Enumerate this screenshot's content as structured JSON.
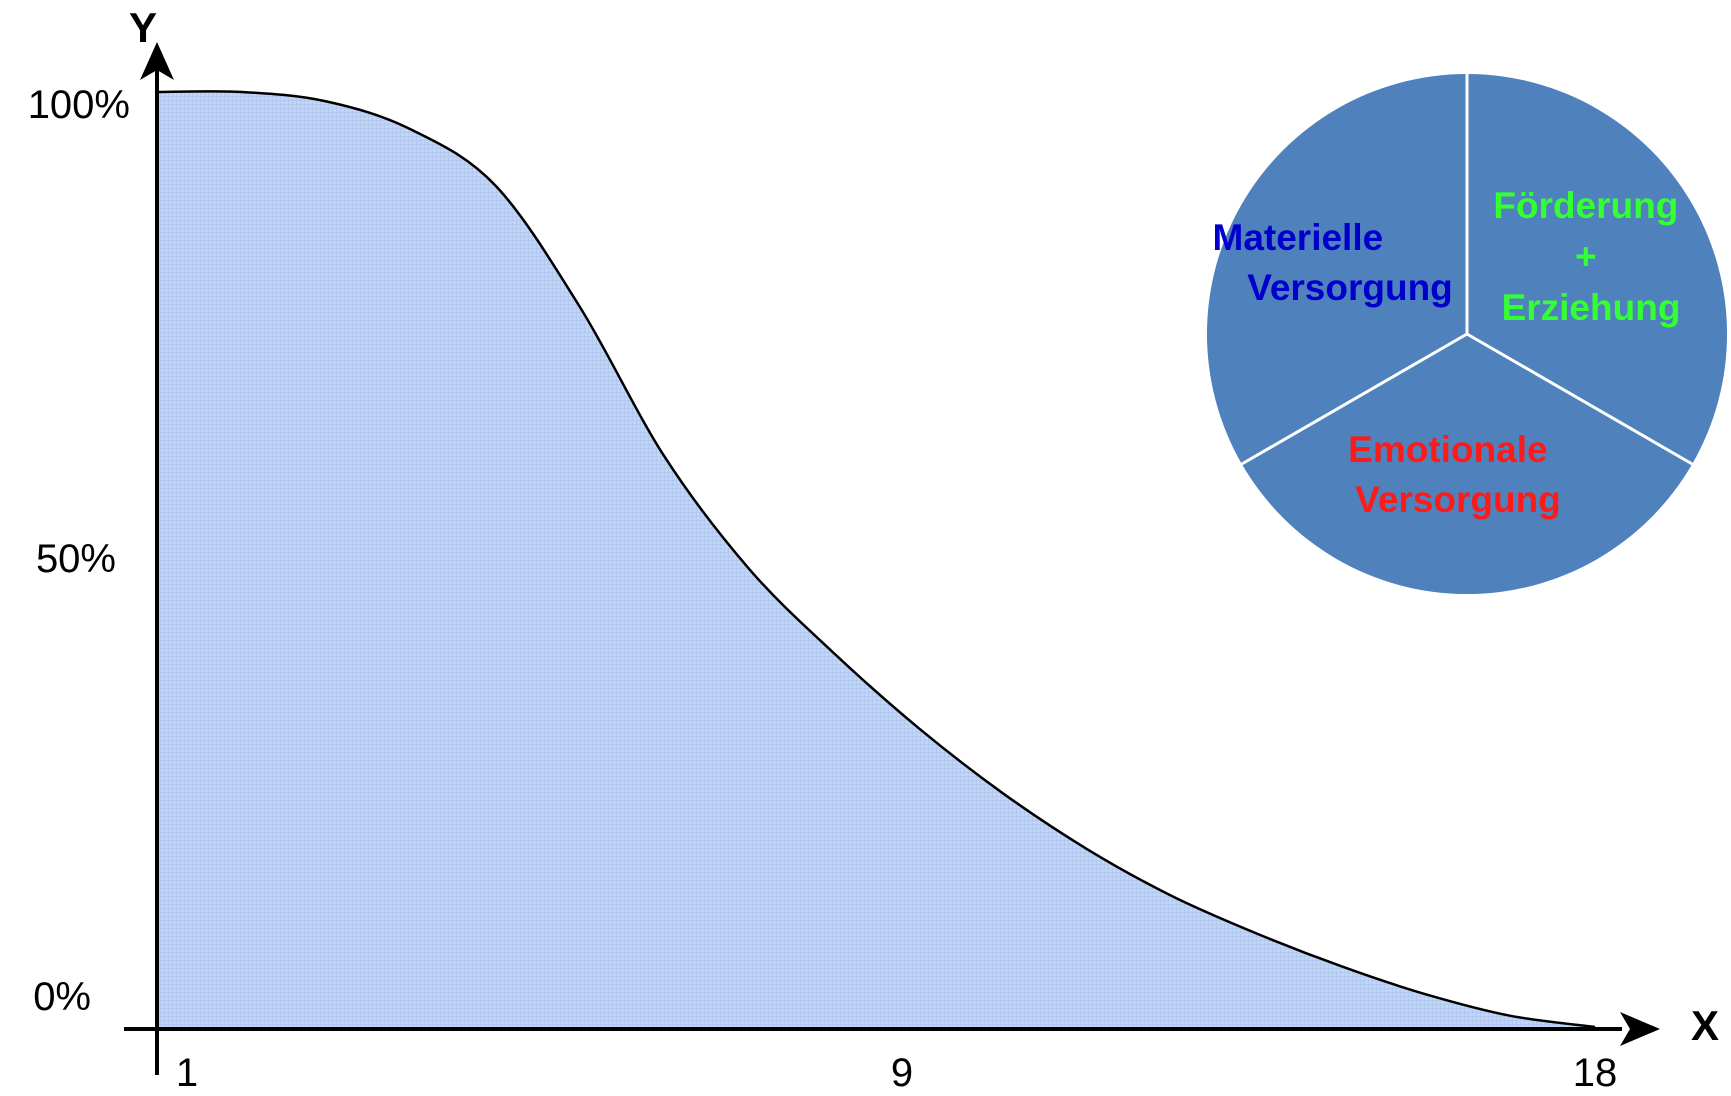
{
  "chart_data": [
    {
      "type": "area",
      "title": "",
      "xlabel": "X",
      "ylabel": "Y",
      "x_ticks": [
        "1",
        "9",
        "18"
      ],
      "y_ticks": [
        "100%",
        "50%",
        "0%"
      ],
      "xlim": [
        1,
        18
      ],
      "ylim": [
        0,
        100
      ],
      "grid": false,
      "series": [
        {
          "x": [
            1,
            2,
            3,
            4,
            5,
            6,
            7,
            8,
            9,
            10,
            11,
            12,
            13,
            14,
            15,
            16,
            17,
            18
          ],
          "values": [
            100,
            100,
            99,
            96,
            90,
            77,
            61,
            49,
            40,
            32,
            25,
            19,
            14,
            10,
            6.5,
            3.5,
            1.2,
            0
          ]
        }
      ],
      "colors": {
        "fill": "#b9cdf1",
        "line": "#000000",
        "axis": "#000000"
      }
    },
    {
      "type": "pie",
      "title": "",
      "slices": [
        {
          "label_lines": [
            "Materielle",
            "Versorgung"
          ],
          "value": 33.33,
          "label_color": "#0000cc"
        },
        {
          "label_lines": [
            "Förderung",
            "+",
            "Erziehung"
          ],
          "value": 33.33,
          "label_color": "#33ff33"
        },
        {
          "label_lines": [
            "Emotionale",
            "Versorgung"
          ],
          "value": 33.33,
          "label_color": "#ff1a1a"
        }
      ],
      "colors": {
        "slice_fill": "#4f81bd",
        "divider": "#ffffff"
      }
    }
  ]
}
